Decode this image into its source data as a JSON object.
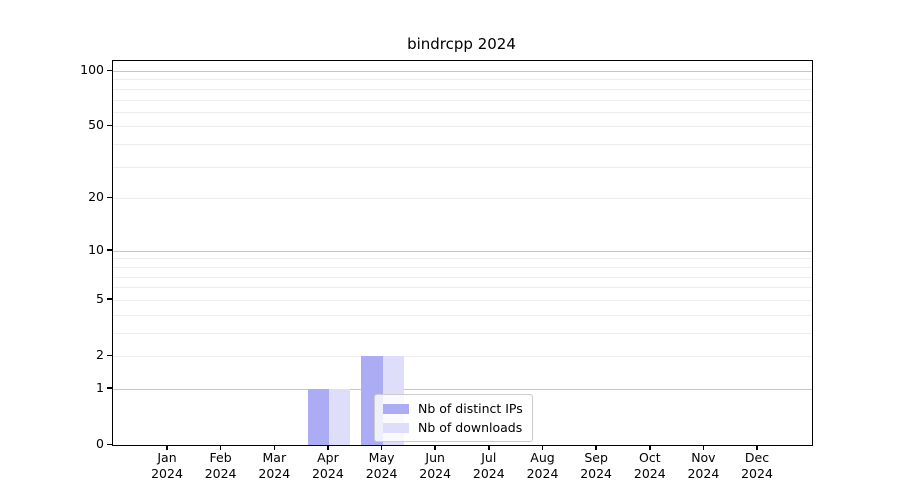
{
  "title": "bindrcpp 2024",
  "chart_data": {
    "type": "bar",
    "title": "bindrcpp 2024",
    "categories": [
      "Jan",
      "Feb",
      "Mar",
      "Apr",
      "May",
      "Jun",
      "Jul",
      "Aug",
      "Sep",
      "Oct",
      "Nov",
      "Dec"
    ],
    "year_label": "2024",
    "series": [
      {
        "name": "Nb of distinct IPs",
        "color": "#abacf3",
        "values": [
          0,
          0,
          0,
          1,
          2,
          0,
          0,
          0,
          0,
          0,
          0,
          0
        ]
      },
      {
        "name": "Nb of downloads",
        "color": "#dedefa",
        "values": [
          0,
          0,
          0,
          1,
          2,
          0,
          0,
          0,
          0,
          0,
          0,
          0
        ]
      }
    ],
    "xlabel": "",
    "ylabel": "",
    "yscale": "log1p",
    "ylim": [
      0,
      114
    ],
    "y_ticks": [
      {
        "value": 0,
        "label": "0"
      },
      {
        "value": 1,
        "label": "1"
      },
      {
        "value": 2,
        "label": "2"
      },
      {
        "value": 5,
        "label": "5"
      },
      {
        "value": 10,
        "label": "10"
      },
      {
        "value": 20,
        "label": "20"
      },
      {
        "value": 50,
        "label": "50"
      },
      {
        "value": 100,
        "label": "100"
      }
    ],
    "y_major_grid_values": [
      1,
      10,
      100
    ],
    "y_minor_grid_values": [
      2,
      3,
      4,
      5,
      6,
      7,
      8,
      9,
      20,
      30,
      40,
      50,
      60,
      70,
      80,
      90
    ],
    "grid": true,
    "legend_position": "lower center",
    "legend_entries": [
      "Nb of distinct IPs",
      "Nb of downloads"
    ]
  }
}
